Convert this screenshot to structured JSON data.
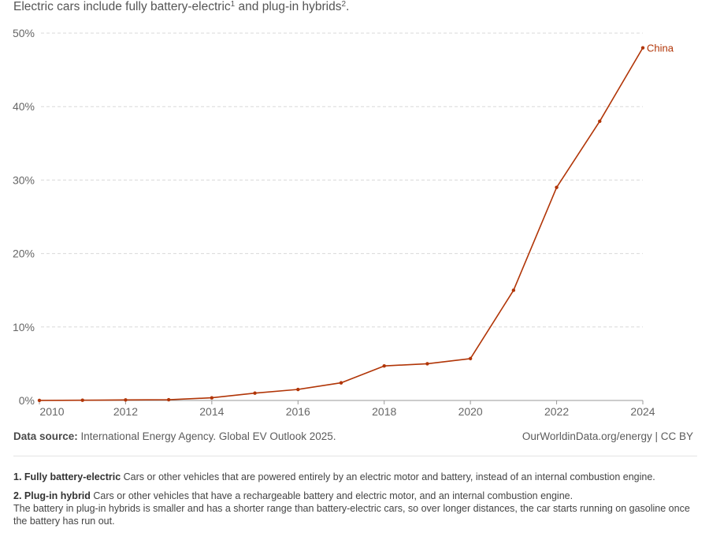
{
  "subtitle": {
    "text": "Electric cars include fully battery-electric",
    "sup1": "1",
    "mid": " and plug-in hybrids",
    "sup2": "2",
    "end": "."
  },
  "chart_data": {
    "type": "line",
    "xlim": [
      2010,
      2024
    ],
    "ylim": [
      0,
      50
    ],
    "x_ticks": [
      "2010",
      "2012",
      "2014",
      "2016",
      "2018",
      "2020",
      "2022",
      "2024"
    ],
    "x_tick_values": [
      2010,
      2012,
      2014,
      2016,
      2018,
      2020,
      2022,
      2024
    ],
    "y_ticks": [
      "0%",
      "10%",
      "20%",
      "30%",
      "40%",
      "50%"
    ],
    "y_tick_values": [
      0,
      10,
      20,
      30,
      40,
      50
    ],
    "grid": "horizontal dashed",
    "series": [
      {
        "name": "China",
        "color": "#b13507",
        "x": [
          2010,
          2011,
          2012,
          2013,
          2014,
          2015,
          2016,
          2017,
          2018,
          2019,
          2020,
          2021,
          2022,
          2023,
          2024
        ],
        "y": [
          0.01,
          0.03,
          0.07,
          0.1,
          0.36,
          1.0,
          1.5,
          2.4,
          4.7,
          5.0,
          5.7,
          15.0,
          29.0,
          38.0,
          48.0
        ]
      }
    ]
  },
  "source": {
    "label": "Data source:",
    "text": " International Energy Agency. Global EV Outlook 2025.",
    "credit": "OurWorldinData.org/energy | CC BY"
  },
  "notes": [
    {
      "title": "1. Fully battery-electric",
      "text": " Cars or other vehicles that are powered entirely by an electric motor and battery, instead of an internal combustion engine."
    },
    {
      "title": "2. Plug-in hybrid",
      "text": " Cars or other vehicles that have a rechargeable battery and electric motor, and an internal combustion engine.",
      "extra": "The battery in plug-in hybrids is smaller and has a shorter range than battery-electric cars, so over longer distances, the car starts running on gasoline once the battery has run out."
    }
  ]
}
